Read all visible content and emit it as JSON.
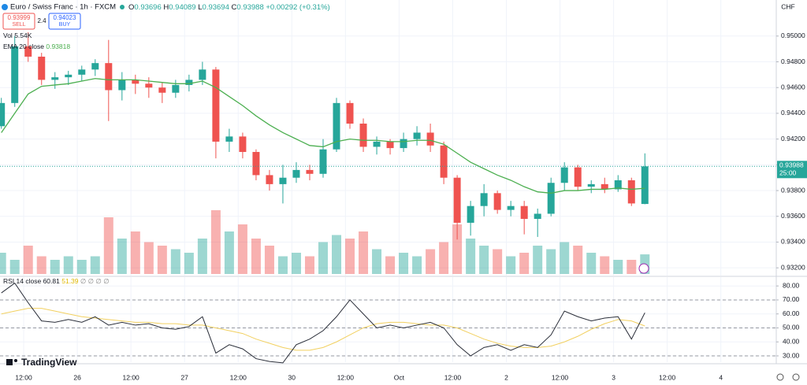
{
  "header": {
    "symbol": "Euro / Swiss Franc · 1h · FXCM",
    "sell_price": "0.93999",
    "sell": "SELL",
    "spread": "2.4",
    "buy_price": "0.94023",
    "buy": "BUY",
    "ohlc_labels": [
      "O",
      "H",
      "L",
      "C"
    ],
    "change": "+0.00292 (+0.31%)",
    "logo": "TradingView"
  },
  "chart_data": {
    "type": "candlestick",
    "currency": "CHF",
    "countdown": "25:00",
    "up_color": "#26a69a",
    "down_color": "#ef5350",
    "grid": true,
    "x": [
      7,
      10,
      13,
      16,
      19,
      22,
      25,
      28,
      31,
      34,
      37,
      40,
      43,
      46,
      49,
      52,
      55,
      58,
      61,
      64,
      67,
      70,
      73,
      76,
      79,
      82,
      85,
      88,
      91,
      94,
      97,
      100,
      103,
      106,
      109,
      112,
      115,
      118,
      121,
      124,
      127,
      130,
      133,
      136,
      139,
      142,
      145,
      148,
      151
    ],
    "open": [
      0.943,
      0.9448,
      0.9492,
      0.9484,
      0.9466,
      0.9468,
      0.947,
      0.9474,
      0.9479,
      0.9458,
      0.9466,
      0.9463,
      0.946,
      0.9456,
      0.9462,
      0.9466,
      0.9474,
      0.9418,
      0.9422,
      0.941,
      0.9392,
      0.9385,
      0.939,
      0.9396,
      0.9393,
      0.9412,
      0.9448,
      0.9432,
      0.9414,
      0.9418,
      0.9413,
      0.942,
      0.9425,
      0.9415,
      0.939,
      0.9355,
      0.9368,
      0.9378,
      0.9365,
      0.9368,
      0.9358,
      0.9362,
      0.9386,
      0.9398,
      0.9383,
      0.9385,
      0.9381,
      0.9388,
      0.93696
    ],
    "high": [
      0.9452,
      0.95,
      0.9503,
      0.9487,
      0.9472,
      0.9473,
      0.9477,
      0.9482,
      0.9497,
      0.9472,
      0.947,
      0.9468,
      0.9464,
      0.9466,
      0.947,
      0.948,
      0.9476,
      0.9428,
      0.9425,
      0.9412,
      0.9396,
      0.94,
      0.9402,
      0.94,
      0.942,
      0.9452,
      0.945,
      0.9436,
      0.9422,
      0.942,
      0.9425,
      0.943,
      0.9432,
      0.9418,
      0.9392,
      0.9372,
      0.9385,
      0.938,
      0.9372,
      0.9372,
      0.9366,
      0.939,
      0.9402,
      0.94,
      0.9388,
      0.939,
      0.9392,
      0.939,
      0.94089
    ],
    "low": [
      0.9428,
      0.9445,
      0.948,
      0.9462,
      0.9459,
      0.9462,
      0.9465,
      0.9469,
      0.9434,
      0.945,
      0.9455,
      0.9452,
      0.9448,
      0.9452,
      0.9457,
      0.9462,
      0.9405,
      0.941,
      0.9405,
      0.9388,
      0.938,
      0.937,
      0.9386,
      0.9388,
      0.939,
      0.941,
      0.9428,
      0.941,
      0.9408,
      0.9408,
      0.941,
      0.9415,
      0.941,
      0.9385,
      0.9342,
      0.9345,
      0.936,
      0.9362,
      0.936,
      0.9346,
      0.9344,
      0.936,
      0.938,
      0.938,
      0.9378,
      0.9378,
      0.9379,
      0.9368,
      0.93694
    ],
    "close": [
      0.9448,
      0.9492,
      0.9484,
      0.9466,
      0.9468,
      0.947,
      0.9474,
      0.9479,
      0.9458,
      0.9466,
      0.9463,
      0.946,
      0.9456,
      0.9462,
      0.9466,
      0.9474,
      0.9418,
      0.9422,
      0.941,
      0.9392,
      0.9385,
      0.939,
      0.9396,
      0.9393,
      0.9412,
      0.9448,
      0.9432,
      0.9414,
      0.9418,
      0.9413,
      0.942,
      0.9425,
      0.9415,
      0.939,
      0.9355,
      0.9368,
      0.9378,
      0.9365,
      0.9368,
      0.9358,
      0.9362,
      0.9386,
      0.9398,
      0.9383,
      0.9385,
      0.9381,
      0.9388,
      0.937,
      0.93988
    ],
    "xlim": [
      6.7,
      180.4
    ],
    "xticks": [
      {
        "value": 12,
        "label": "12:00"
      },
      {
        "value": 24,
        "label": "26"
      },
      {
        "value": 36,
        "label": "12:00"
      },
      {
        "value": 48,
        "label": "27"
      },
      {
        "value": 60,
        "label": "12:00"
      },
      {
        "value": 72,
        "label": "30"
      },
      {
        "value": 84,
        "label": "12:00"
      },
      {
        "value": 96,
        "label": "Oct"
      },
      {
        "value": 108,
        "label": "12:00"
      },
      {
        "value": 120,
        "label": "2"
      },
      {
        "value": 132,
        "label": "12:00"
      },
      {
        "value": 144,
        "label": "3"
      },
      {
        "value": 156,
        "label": "12:00"
      },
      {
        "value": 168,
        "label": "4"
      }
    ],
    "ylim": [
      0.9314,
      0.9528
    ],
    "yticks": [
      {
        "value": 0.932,
        "label": "0.93200"
      },
      {
        "value": 0.934,
        "label": "0.93400"
      },
      {
        "value": 0.936,
        "label": "0.93600"
      },
      {
        "value": 0.938,
        "label": "0.93800"
      },
      {
        "value": 0.94,
        "label": "0.94000"
      },
      {
        "value": 0.942,
        "label": "0.94200"
      },
      {
        "value": 0.944,
        "label": "0.94400"
      },
      {
        "value": 0.946,
        "label": "0.94600"
      },
      {
        "value": 0.948,
        "label": "0.94800"
      },
      {
        "value": 0.95,
        "label": "0.95000"
      }
    ],
    "volume": {
      "name": "Vol",
      "lim": [
        0,
        20
      ],
      "values": [
        6,
        4,
        8,
        5,
        4,
        5,
        4,
        5,
        16,
        10,
        12,
        9,
        8,
        7,
        6,
        10,
        18,
        12,
        14,
        10,
        8,
        5,
        6,
        5,
        9,
        11,
        10,
        12,
        7,
        5,
        6,
        5,
        7,
        9,
        14,
        10,
        8,
        7,
        5,
        6,
        8,
        7,
        9,
        8,
        6,
        5,
        4,
        4,
        5.54
      ],
      "value_labels": {
        "48": "5.54K"
      }
    },
    "ema": {
      "name": "EMA 20 close",
      "color": "#4caf50",
      "values": [
        0.9425,
        0.944,
        0.9455,
        0.9461,
        0.9462,
        0.9463,
        0.9465,
        0.9467,
        0.9466,
        0.9466,
        0.9466,
        0.9465,
        0.9464,
        0.9463,
        0.9463,
        0.9465,
        0.946,
        0.9453,
        0.9446,
        0.9438,
        0.9431,
        0.9425,
        0.942,
        0.9415,
        0.9414,
        0.9418,
        0.942,
        0.9419,
        0.9419,
        0.9418,
        0.9418,
        0.9419,
        0.9419,
        0.9416,
        0.9409,
        0.9402,
        0.9397,
        0.9392,
        0.9388,
        0.9383,
        0.9379,
        0.9378,
        0.938,
        0.938,
        0.9381,
        0.9381,
        0.9382,
        0.9381,
        0.93818
      ]
    },
    "rsi": {
      "name": "RSI 14 close",
      "color": "#2a2e39",
      "ma_color": "#f2d060",
      "extra": "∅ ∅ ∅ ∅",
      "values": [
        75,
        82,
        68,
        55,
        54,
        56,
        54,
        58,
        52,
        54,
        52,
        53,
        50,
        49,
        51,
        58,
        32,
        38,
        35,
        28,
        26,
        25,
        38,
        42,
        48,
        58,
        70,
        60,
        50,
        52,
        50,
        52,
        54,
        50,
        38,
        30,
        36,
        38,
        34,
        38,
        36,
        45,
        62,
        58,
        55,
        57,
        58,
        42,
        60.81
      ],
      "ma_values": [
        60,
        62,
        64,
        64,
        62,
        60,
        58,
        57,
        56,
        55,
        54,
        54,
        53,
        53,
        52,
        52,
        50,
        48,
        46,
        42,
        39,
        36,
        34,
        34,
        36,
        40,
        45,
        50,
        53,
        54,
        54,
        53,
        52,
        52,
        50,
        46,
        42,
        39,
        37,
        36,
        36,
        37,
        40,
        44,
        49,
        53,
        56,
        55,
        51.39
      ],
      "ylim": [
        25.5,
        86.3
      ],
      "yticks": [
        {
          "value": 30,
          "label": "30.00"
        },
        {
          "value": 40,
          "label": "40.00"
        },
        {
          "value": 50,
          "label": "50.00"
        },
        {
          "value": 60,
          "label": "60.00"
        },
        {
          "value": 70,
          "label": "70.00"
        },
        {
          "value": 80,
          "label": "80.00"
        }
      ],
      "levels": [
        70,
        50,
        30
      ]
    }
  }
}
